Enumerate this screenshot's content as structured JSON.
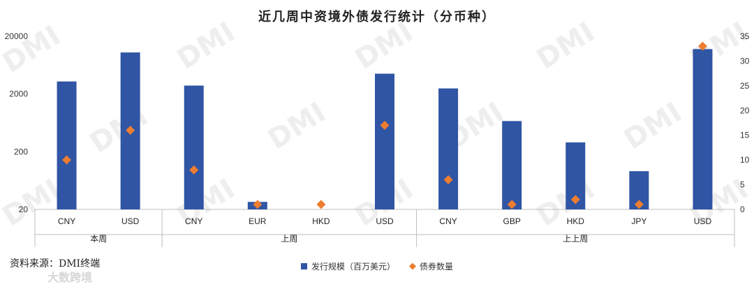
{
  "chart_data": {
    "type": "bar",
    "title": "近几周中资境外债发行统计（分币种）",
    "source": "资料来源：DMI终端",
    "watermark": "DMI",
    "footer_watermark": "大数跨境",
    "groups": [
      {
        "label": "本周",
        "categories": [
          "CNY",
          "USD"
        ]
      },
      {
        "label": "上周",
        "categories": [
          "CNY",
          "EUR",
          "HKD",
          "USD"
        ]
      },
      {
        "label": "上上周",
        "categories": [
          "CNY",
          "GBP",
          "HKD",
          "JPY",
          "USD"
        ]
      }
    ],
    "categories": [
      "CNY",
      "USD",
      "CNY",
      "EUR",
      "HKD",
      "USD",
      "CNY",
      "GBP",
      "HKD",
      "JPY",
      "USD"
    ],
    "y_left": {
      "scale": "log",
      "ylim": [
        20,
        20000
      ],
      "ticks": [
        "20",
        "200",
        "2000",
        "20000"
      ]
    },
    "y_right": {
      "scale": "linear",
      "ylim": [
        0,
        35
      ],
      "ticks": [
        "0",
        "5",
        "10",
        "15",
        "20",
        "25",
        "30",
        "35"
      ]
    },
    "series": [
      {
        "name": "发行规模（百万美元）",
        "type": "bar",
        "axis": "left",
        "color": "#2f55a4",
        "values": [
          3300,
          10500,
          2800,
          27,
          null,
          4500,
          2500,
          680,
          290,
          92,
          12000
        ]
      },
      {
        "name": "债券数量",
        "type": "scatter",
        "axis": "right",
        "marker": "diamond",
        "color": "#ed7d31",
        "values": [
          10,
          16,
          8,
          1,
          1,
          17,
          6,
          1,
          2,
          1,
          33
        ]
      }
    ],
    "grid": false,
    "legend_position": "bottom"
  }
}
